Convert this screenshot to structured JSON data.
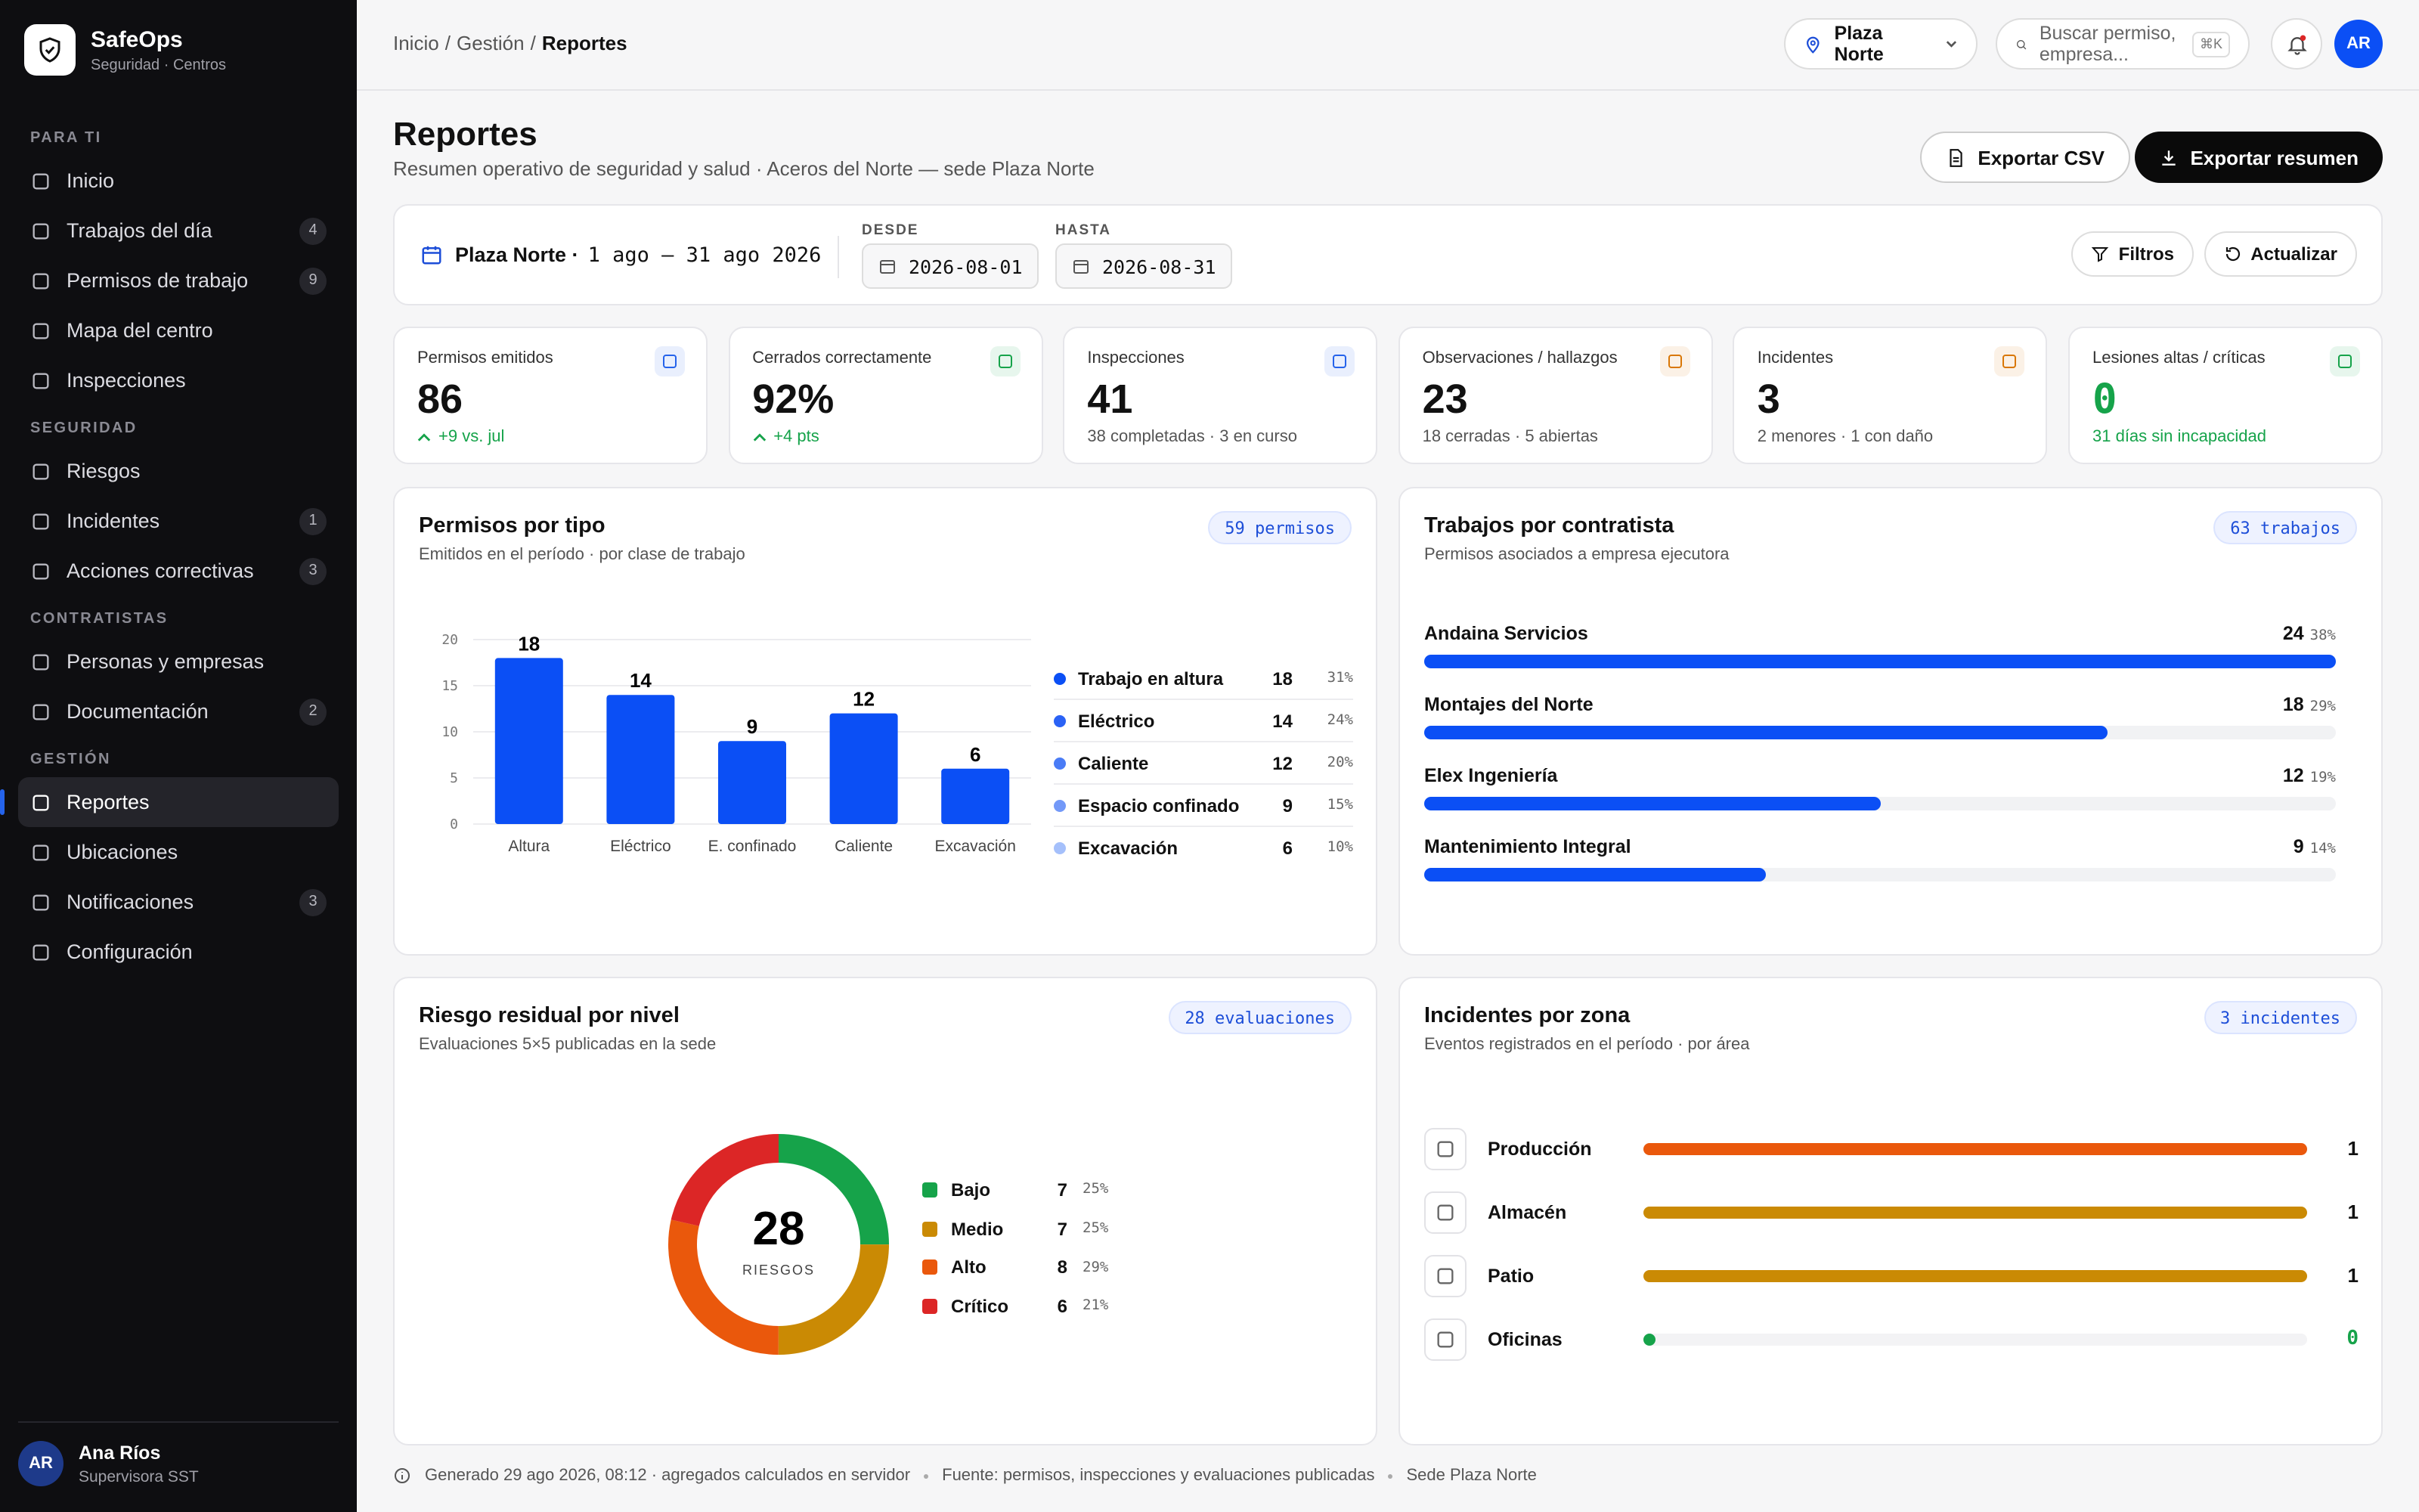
{
  "sidebar": {
    "brand": "SafeOps",
    "tagline": "Seguridad · Centros",
    "sections": [
      {
        "title": "PARA TI",
        "items": [
          {
            "label": "Inicio"
          },
          {
            "label": "Trabajos del día",
            "badge": 4
          },
          {
            "label": "Permisos de trabajo",
            "badge": 9
          },
          {
            "label": "Mapa del centro"
          },
          {
            "label": "Inspecciones"
          }
        ]
      },
      {
        "title": "SEGURIDAD",
        "items": [
          {
            "label": "Riesgos"
          },
          {
            "label": "Incidentes",
            "badge": 1
          },
          {
            "label": "Acciones correctivas",
            "badge": 3
          }
        ]
      },
      {
        "title": "CONTRATISTAS",
        "items": [
          {
            "label": "Personas y empresas"
          },
          {
            "label": "Documentación",
            "badge": 2
          }
        ]
      },
      {
        "title": "GESTIÓN",
        "items": [
          {
            "label": "Reportes",
            "active": true
          },
          {
            "label": "Ubicaciones"
          },
          {
            "label": "Notificaciones",
            "badge": 3
          },
          {
            "label": "Configuración"
          }
        ]
      }
    ],
    "user": {
      "initials": "AR",
      "name": "Ana Ríos",
      "role": "Supervisora SST"
    }
  },
  "topbar": {
    "breadcrumb": [
      "Inicio",
      "Gestión",
      "Reportes"
    ],
    "separator": "/",
    "site": "Plaza Norte",
    "search": "Buscar permiso, empresa...",
    "shortcut": "⌘K",
    "avatar": "AR"
  },
  "page": {
    "title": "Reportes",
    "subtitle": "Resumen operativo de seguridad y salud · Aceros del Norte — sede Plaza Norte",
    "export_csv": "Exportar CSV",
    "export_summary": "Exportar resumen"
  },
  "filters": {
    "site": "Plaza Norte ·",
    "range": "1 ago – 31 ago 2026",
    "from_label": "DESDE",
    "from": "2026-08-01",
    "to_label": "HASTA",
    "to": "2026-08-31",
    "filter_button": "Filtros",
    "refresh_button": "Actualizar"
  },
  "kpis": [
    {
      "label": "Permisos emitidos",
      "value": 86,
      "note": "+9 vs. jul",
      "trend": "up",
      "color": "#16a34a",
      "icon_color": "#2563eb"
    },
    {
      "label": "Cerrados correctamente",
      "value": "92%",
      "note": "+4 pts",
      "trend": "up",
      "color": "#16a34a",
      "icon_color": "#16a34a"
    },
    {
      "label": "Inspecciones",
      "value": 41,
      "note": "38 completadas · 3 en curso",
      "color": "#555",
      "icon_color": "#2563eb"
    },
    {
      "label": "Observaciones / hallazgos",
      "value": 23,
      "note": "18 cerradas · 5 abiertas",
      "color": "#555",
      "icon_color": "#d97706"
    },
    {
      "label": "Incidentes",
      "value": 3,
      "note": "2 menores · 1 con daño",
      "color": "#555",
      "icon_color": "#d97706"
    },
    {
      "label": "Lesiones altas / críticas",
      "value": 0,
      "note": "31 días sin incapacidad",
      "color": "#16a34a",
      "icon_color": "#16a34a",
      "value_color": "#16a34a"
    }
  ],
  "permits": {
    "title": "Permisos por tipo",
    "subtitle": "Emitidos en el período · por clase de trabajo",
    "badge": "59 permisos",
    "type": "bar",
    "color": "#0b4ff5",
    "categories": [
      "Altura",
      "Eléctrico",
      "E. confinado",
      "Caliente",
      "Excavación"
    ],
    "values": [
      18,
      14,
      9,
      12,
      6
    ],
    "ylim": [
      0,
      20
    ],
    "yticks": [
      0,
      5,
      10,
      15,
      20
    ],
    "grid": true,
    "legend": [
      {
        "name": "Trabajo en altura",
        "value": 18,
        "share": "31%",
        "color": "#0b4ff5"
      },
      {
        "name": "Eléctrico",
        "value": 14,
        "share": "24%",
        "color": "#2a62f5"
      },
      {
        "name": "Caliente",
        "value": 12,
        "share": "20%",
        "color": "#4a7cf6"
      },
      {
        "name": "Espacio confinado",
        "value": 9,
        "share": "15%",
        "color": "#7399f8"
      },
      {
        "name": "Excavación",
        "value": 6,
        "share": "10%",
        "color": "#a5c0fb"
      }
    ]
  },
  "contractors": {
    "title": "Trabajos por contratista",
    "subtitle": "Permisos asociados a empresa ejecutora",
    "badge": "63 trabajos",
    "color": "#0b4ff5",
    "xlim": [
      0,
      24
    ],
    "rows": [
      {
        "name": "Andaina Servicios",
        "value": 24,
        "share": "38%"
      },
      {
        "name": "Montajes del Norte",
        "value": 18,
        "share": "29%"
      },
      {
        "name": "Elex Ingeniería",
        "value": 12,
        "share": "19%"
      },
      {
        "name": "Mantenimiento Integral",
        "value": 9,
        "share": "14%"
      }
    ]
  },
  "risk": {
    "title": "Riesgo residual por nivel",
    "subtitle": "Evaluaciones 5×5 publicadas en la sede",
    "badge": "28 evaluaciones",
    "type": "donut",
    "total": 28,
    "total_label": "RIESGOS",
    "levels": [
      {
        "name": "Bajo",
        "value": 7,
        "share": "25%",
        "color": "#16a34a"
      },
      {
        "name": "Medio",
        "value": 7,
        "share": "25%",
        "color": "#ca8a04"
      },
      {
        "name": "Alto",
        "value": 8,
        "share": "29%",
        "color": "#ea580c"
      },
      {
        "name": "Crítico",
        "value": 6,
        "share": "21%",
        "color": "#dc2626"
      }
    ]
  },
  "incidents": {
    "title": "Incidentes por zona",
    "subtitle": "Eventos registrados en el período · por área",
    "badge": "3 incidentes",
    "xlim": [
      0,
      1
    ],
    "zones": [
      {
        "name": "Producción",
        "value": 1,
        "color": "#ea580c"
      },
      {
        "name": "Almacén",
        "value": 1,
        "color": "#ca8a04"
      },
      {
        "name": "Patio",
        "value": 1,
        "color": "#ca8a04"
      },
      {
        "name": "Oficinas",
        "value": 0,
        "color": "#16a34a"
      }
    ]
  },
  "footer": [
    "Generado 29 ago 2026, 08:12 · agregados calculados en servidor",
    "Fuente: permisos, inspecciones y evaluaciones publicadas",
    "Sede Plaza Norte"
  ]
}
